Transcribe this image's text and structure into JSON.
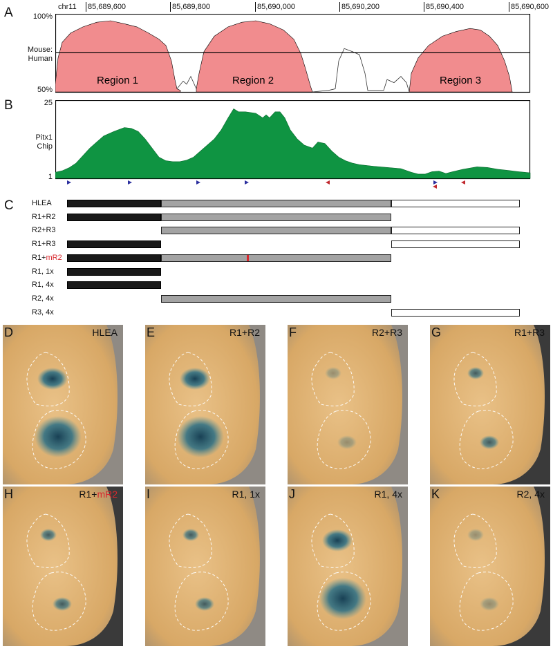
{
  "panels": {
    "A": "A",
    "B": "B",
    "C": "C",
    "D": "D",
    "E": "E",
    "F": "F",
    "G": "G",
    "H": "H",
    "I": "I",
    "J": "J",
    "K": "K"
  },
  "chr_label": "chr11",
  "ticks": [
    "85,689,600",
    "85,689,800",
    "85,690,000",
    "85,690,200",
    "85,690,400",
    "85,690,600"
  ],
  "conservation": {
    "y_top": "100%",
    "y_bottom": "50%",
    "mid_label_line1": "Mouse:",
    "mid_label_line2": "Human",
    "regions": [
      "Region 1",
      "Region 2",
      "Region 3"
    ]
  },
  "chip": {
    "y_top": "25",
    "y_bottom": "1",
    "label_line1": "Pitx1",
    "label_line2": "Chip"
  },
  "constructs": [
    {
      "label": "HLEA",
      "r1": true,
      "r2": true,
      "r3": true,
      "mut": false
    },
    {
      "label": "R1+R2",
      "r1": true,
      "r2": true,
      "r3": false,
      "mut": false
    },
    {
      "label": "R2+R3",
      "r1": false,
      "r2": true,
      "r3": true,
      "mut": false
    },
    {
      "label": "R1+R3",
      "r1": true,
      "r2": false,
      "r3": true,
      "mut": false
    },
    {
      "label_prefix": "R1+",
      "label_red": "mR2",
      "r1": true,
      "r2": true,
      "r3": false,
      "mut": true
    },
    {
      "label": "R1, 1x",
      "r1": true,
      "r2": false,
      "r3": false,
      "mut": false
    },
    {
      "label": "R1, 4x",
      "r1": true,
      "r2": false,
      "r3": false,
      "mut": false
    },
    {
      "label": "R2, 4x",
      "r1": false,
      "r2": true,
      "r3": false,
      "mut": false
    },
    {
      "label": "R3, 4x",
      "r1": false,
      "r2": false,
      "r3": true,
      "mut": false
    }
  ],
  "photos": [
    {
      "letter": "D",
      "label": "HLEA",
      "stain": "strong"
    },
    {
      "letter": "E",
      "label": "R1+R2",
      "stain": "strong"
    },
    {
      "letter": "F",
      "label": "R2+R3",
      "stain": "weak"
    },
    {
      "letter": "G",
      "label": "R1+R3",
      "stain": "medium"
    },
    {
      "letter": "H",
      "label_prefix": "R1+",
      "label_red": "mR2",
      "stain": "medium"
    },
    {
      "letter": "I",
      "label": "R1, 1x",
      "stain": "medium"
    },
    {
      "letter": "J",
      "label": "R1, 4x",
      "stain": "strong"
    },
    {
      "letter": "K",
      "label": "R2, 4x",
      "stain": "weak"
    }
  ],
  "colors": {
    "conservation_fill": "#f18c8e",
    "chip_fill": "#0f9442",
    "r1_bar": "#1a1a1a",
    "r2_bar": "#a3a3a3",
    "r3_bar": "#ffffff",
    "mutation": "#d8282e",
    "arrow_forward": "#2b2f9e",
    "arrow_reverse": "#c0282e",
    "stain": "#1f5f7a",
    "embryo": "#d9ad74"
  }
}
